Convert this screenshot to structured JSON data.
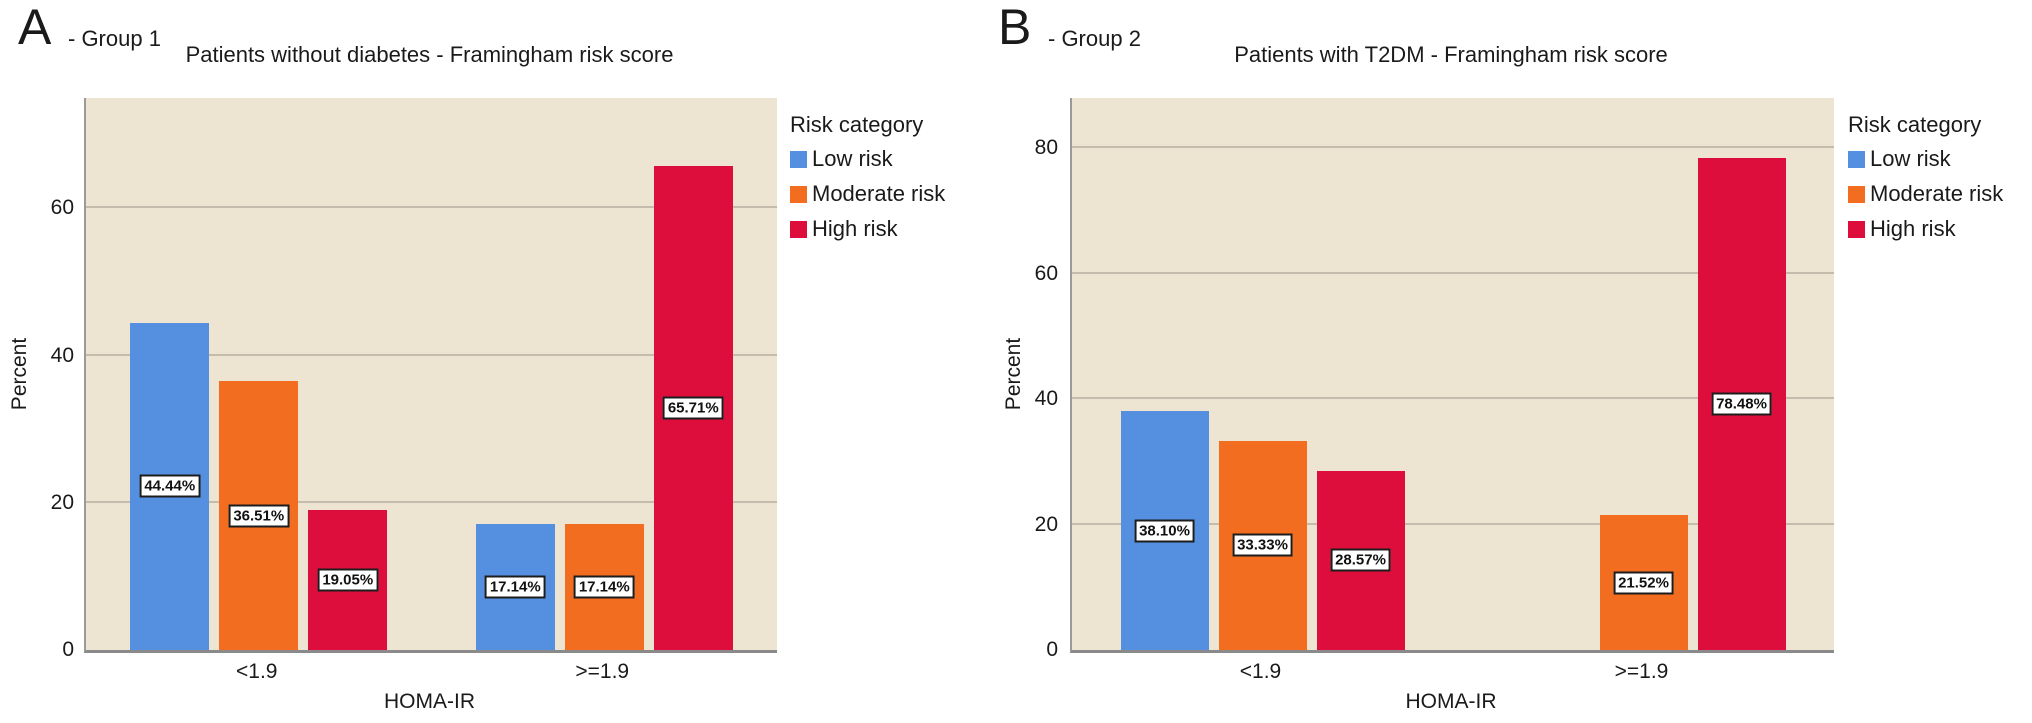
{
  "colors": {
    "low_risk": "#5590E0",
    "moderate_risk": "#F36D21",
    "high_risk": "#DE0E3C",
    "plot_background": "#EDE4D2",
    "gridline": "#C4BCAC",
    "text": "#1A1A1A"
  },
  "chart_data": [
    {
      "type": "bar",
      "panel_letter": "A",
      "panel_label": "- Group 1",
      "title": "Patients without diabetes - Framingham risk score",
      "categories": [
        "<1.9",
        ">=1.9"
      ],
      "series": [
        {
          "name": "Low risk",
          "color": "#5590E0",
          "values": [
            44.44,
            17.14
          ]
        },
        {
          "name": "Moderate risk",
          "color": "#F36D21",
          "values": [
            36.51,
            17.14
          ]
        },
        {
          "name": "High risk",
          "color": "#DE0E3C",
          "values": [
            19.05,
            65.71
          ]
        }
      ],
      "bar_labels": [
        [
          "44.44%",
          "36.51%",
          "19.05%"
        ],
        [
          "17.14%",
          "17.14%",
          "65.71%"
        ]
      ],
      "xlabel": "HOMA-IR",
      "ylabel": "Percent",
      "yticks": [
        0,
        20,
        40,
        60
      ],
      "ylim": [
        0,
        75
      ],
      "grid": true,
      "legend_title": "Risk category",
      "legend_position": "right"
    },
    {
      "type": "bar",
      "panel_letter": "B",
      "panel_label": "- Group 2",
      "title": "Patients with T2DM - Framingham risk score",
      "categories": [
        "<1.9",
        ">=1.9"
      ],
      "series": [
        {
          "name": "Low risk",
          "color": "#5590E0",
          "values": [
            38.1,
            null
          ]
        },
        {
          "name": "Moderate risk",
          "color": "#F36D21",
          "values": [
            33.33,
            21.52
          ]
        },
        {
          "name": "High risk",
          "color": "#DE0E3C",
          "values": [
            28.57,
            78.48
          ]
        }
      ],
      "bar_labels": [
        [
          "38.10%",
          "33.33%",
          "28.57%"
        ],
        [
          null,
          "21.52%",
          "78.48%"
        ]
      ],
      "xlabel": "HOMA-IR",
      "ylabel": "Percent",
      "yticks": [
        0,
        20,
        40,
        60,
        80
      ],
      "ylim": [
        0,
        88
      ],
      "grid": true,
      "legend_title": "Risk category",
      "legend_position": "right"
    }
  ]
}
